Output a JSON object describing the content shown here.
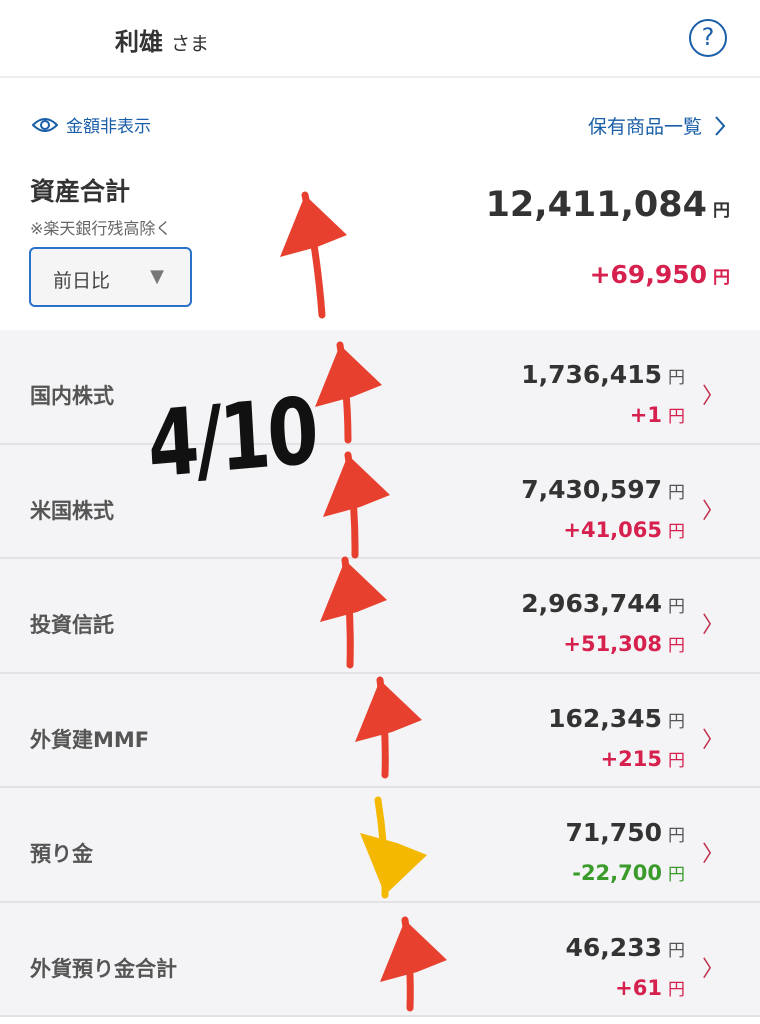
{
  "header": {
    "name": "利雄",
    "honorific": "さま",
    "help_icon": "question-circle-icon"
  },
  "toolbar": {
    "hide_amounts": "金額非表示",
    "holdings_list": "保有商品一覧"
  },
  "summary": {
    "label": "資産合計",
    "note": "※楽天銀行残高除く",
    "period_select": "前日比",
    "total": "12,411,084",
    "total_unit": "円",
    "change": "+69,950",
    "change_unit": "円"
  },
  "rows": [
    {
      "label": "国内株式",
      "value": "1,736,415",
      "change": "+1",
      "unit": "円",
      "sign": "pos"
    },
    {
      "label": "米国株式",
      "value": "7,430,597",
      "change": "+41,065",
      "unit": "円",
      "sign": "pos"
    },
    {
      "label": "投資信託",
      "value": "2,963,744",
      "change": "+51,308",
      "unit": "円",
      "sign": "pos"
    },
    {
      "label": "外貨建MMF",
      "value": "162,345",
      "change": "+215",
      "unit": "円",
      "sign": "pos"
    },
    {
      "label": "預り金",
      "value": "71,750",
      "change": "-22,700",
      "unit": "円",
      "sign": "neg"
    },
    {
      "label": "外貨預り金合計",
      "value": "46,233",
      "change": "+61",
      "unit": "円",
      "sign": "pos"
    }
  ],
  "annotation": {
    "handwritten_date": "4/10",
    "arrow_up_color": "#e8402f",
    "arrow_down_color": "#f5b800"
  },
  "colors": {
    "accent": "#1a5ea8",
    "positive": "#d6204e",
    "negative": "#3a9a2a"
  }
}
